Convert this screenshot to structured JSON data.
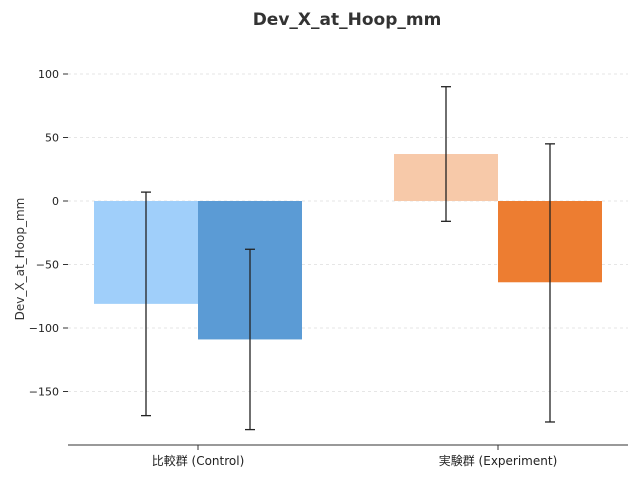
{
  "chart_data": {
    "type": "bar",
    "title": "Dev_X_at_Hoop_mm",
    "xlabel": "",
    "ylabel": "Dev_X_at_Hoop_mm",
    "ylim": [
      -193,
      100
    ],
    "yticks": [
      100,
      50,
      0,
      -50,
      -100,
      -150
    ],
    "grid": true,
    "legend": "none",
    "categories": [
      "比較群 (Control)",
      "実験群 (Experiment)"
    ],
    "groups": [
      {
        "category": "比較群 (Control)",
        "bars": [
          {
            "value": -81,
            "error_low": -169,
            "error_high": 7,
            "color": "#a0cffa"
          },
          {
            "value": -109,
            "error_low": -180,
            "error_high": -38,
            "color": "#5b9bd5"
          }
        ]
      },
      {
        "category": "実験群 (Experiment)",
        "bars": [
          {
            "value": 37,
            "error_low": -16,
            "error_high": 90,
            "color": "#f7c9a9"
          },
          {
            "value": -64,
            "error_low": -174,
            "error_high": 45,
            "color": "#ed7d31"
          }
        ]
      }
    ]
  }
}
